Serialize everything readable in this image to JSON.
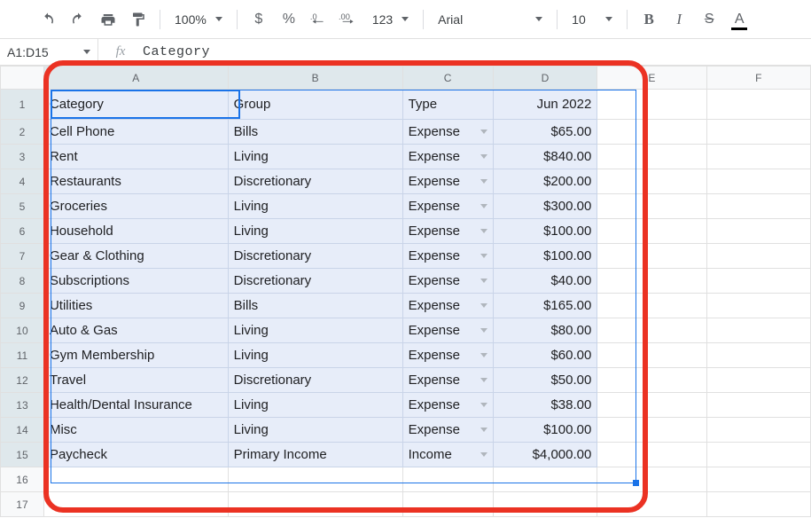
{
  "toolbar": {
    "zoom": "100%",
    "currency": "$",
    "percent": "%",
    "font": "Arial",
    "fontSize": "10",
    "numberFormat": "123"
  },
  "nameBox": "A1:D15",
  "formulaBar": "Category",
  "columns": [
    "A",
    "B",
    "C",
    "D",
    "E",
    "F"
  ],
  "header": {
    "A": "Category",
    "B": "Group",
    "C": "Type",
    "D": "Jun 2022"
  },
  "rows": [
    {
      "n": 2,
      "A": "Cell Phone",
      "B": "Bills",
      "C": "Expense",
      "D": "$65.00"
    },
    {
      "n": 3,
      "A": "Rent",
      "B": "Living",
      "C": "Expense",
      "D": "$840.00"
    },
    {
      "n": 4,
      "A": "Restaurants",
      "B": "Discretionary",
      "C": "Expense",
      "D": "$200.00"
    },
    {
      "n": 5,
      "A": "Groceries",
      "B": "Living",
      "C": "Expense",
      "D": "$300.00"
    },
    {
      "n": 6,
      "A": "Household",
      "B": "Living",
      "C": "Expense",
      "D": "$100.00"
    },
    {
      "n": 7,
      "A": "Gear & Clothing",
      "B": "Discretionary",
      "C": "Expense",
      "D": "$100.00"
    },
    {
      "n": 8,
      "A": "Subscriptions",
      "B": "Discretionary",
      "C": "Expense",
      "D": "$40.00"
    },
    {
      "n": 9,
      "A": "Utilities",
      "B": "Bills",
      "C": "Expense",
      "D": "$165.00"
    },
    {
      "n": 10,
      "A": "Auto & Gas",
      "B": "Living",
      "C": "Expense",
      "D": "$80.00"
    },
    {
      "n": 11,
      "A": "Gym Membership",
      "B": "Living",
      "C": "Expense",
      "D": "$60.00"
    },
    {
      "n": 12,
      "A": "Travel",
      "B": "Discretionary",
      "C": "Expense",
      "D": "$50.00"
    },
    {
      "n": 13,
      "A": "Health/Dental Insurance",
      "B": "Living",
      "C": "Expense",
      "D": "$38.00"
    },
    {
      "n": 14,
      "A": "Misc",
      "B": "Living",
      "C": "Expense",
      "D": "$100.00"
    },
    {
      "n": 15,
      "A": "Paycheck",
      "B": "Primary Income",
      "C": "Income",
      "D": "$4,000.00"
    }
  ],
  "emptyRows": [
    16,
    17
  ],
  "colors": {
    "selectionBg": "#e7edf9",
    "activeBorder": "#1a73e8",
    "highlightFrame": "#eb3223",
    "grid": "#e0e0e0",
    "headerBg": "#f8f9fa"
  }
}
